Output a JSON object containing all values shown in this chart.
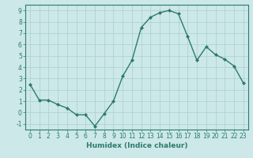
{
  "x": [
    0,
    1,
    2,
    3,
    4,
    5,
    6,
    7,
    8,
    9,
    10,
    11,
    12,
    13,
    14,
    15,
    16,
    17,
    18,
    19,
    20,
    21,
    22,
    23
  ],
  "y": [
    2.5,
    1.1,
    1.1,
    0.7,
    0.4,
    -0.2,
    -0.2,
    -1.2,
    -0.1,
    1.0,
    3.2,
    4.6,
    7.5,
    8.4,
    8.8,
    9.0,
    8.7,
    6.7,
    4.6,
    5.8,
    5.1,
    4.7,
    4.1,
    2.6
  ],
  "line_color": "#2d7a6e",
  "marker": "D",
  "marker_size": 2,
  "linewidth": 1.0,
  "xlabel": "Humidex (Indice chaleur)",
  "xlim": [
    -0.5,
    23.5
  ],
  "ylim": [
    -1.5,
    9.5
  ],
  "yticks": [
    -1,
    0,
    1,
    2,
    3,
    4,
    5,
    6,
    7,
    8,
    9
  ],
  "xticks": [
    0,
    1,
    2,
    3,
    4,
    5,
    6,
    7,
    8,
    9,
    10,
    11,
    12,
    13,
    14,
    15,
    16,
    17,
    18,
    19,
    20,
    21,
    22,
    23
  ],
  "xtick_labels": [
    "0",
    "1",
    "2",
    "3",
    "4",
    "5",
    "6",
    "7",
    "8",
    "9",
    "10",
    "11",
    "12",
    "13",
    "14",
    "15",
    "16",
    "17",
    "18",
    "19",
    "20",
    "21",
    "22",
    "23"
  ],
  "background_color": "#cce8e8",
  "grid_color": "#aacfcf",
  "line_color2": "#2d6b60",
  "xlabel_fontsize": 6.5,
  "tick_fontsize": 5.5
}
